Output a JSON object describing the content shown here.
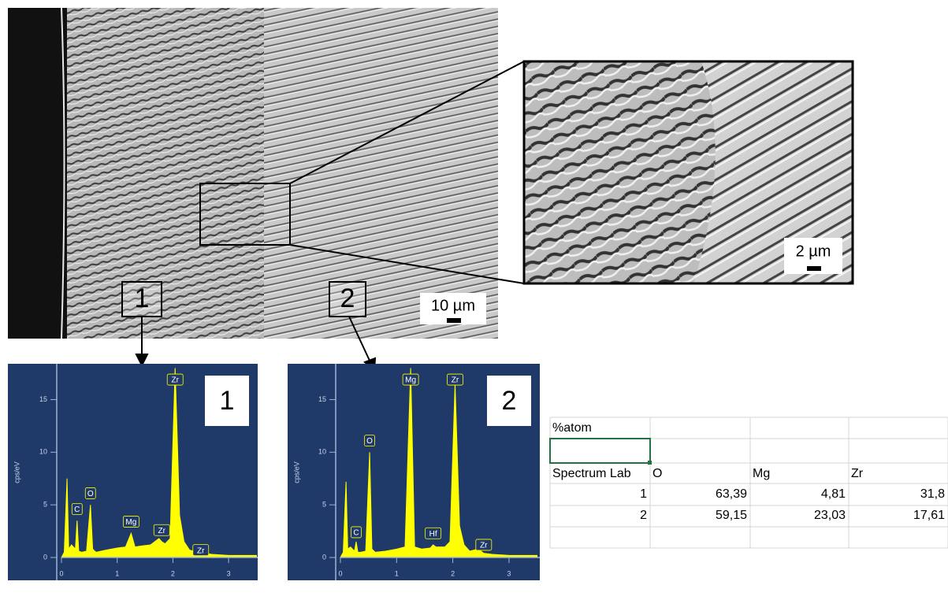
{
  "image": {
    "markers": [
      "1",
      "2"
    ],
    "scale_bar": "10 µm"
  },
  "inset": {
    "scale_bar": "2 µm"
  },
  "chart_data": [
    {
      "type": "area",
      "panel": "1",
      "y_label": "cps/eV",
      "color": "#ffff00",
      "background": "#1f3a68",
      "x": [
        0,
        0.05,
        0.1,
        0.13,
        0.18,
        0.25,
        0.28,
        0.31,
        0.36,
        0.45,
        0.52,
        0.56,
        0.62,
        0.8,
        1.0,
        1.15,
        1.25,
        1.32,
        1.45,
        1.6,
        1.75,
        1.8,
        1.86,
        1.95,
        2.04,
        2.12,
        2.2,
        2.3,
        2.45,
        2.55,
        2.7,
        3.0,
        3.5
      ],
      "values": [
        0,
        0.5,
        7.5,
        0.8,
        1.2,
        0.8,
        3.5,
        0.6,
        0.5,
        0.6,
        5,
        0.8,
        0.5,
        0.7,
        0.9,
        1.0,
        2.3,
        1.0,
        1.1,
        1.2,
        1.8,
        1.5,
        1.3,
        1.8,
        18,
        4,
        1.5,
        0.7,
        0.5,
        0.4,
        0.3,
        0.2,
        0.2
      ],
      "peaks": [
        {
          "label": "C",
          "x": 0.28,
          "y": 4.6
        },
        {
          "label": "O",
          "x": 0.52,
          "y": 6.1
        },
        {
          "label": "Mg",
          "x": 1.25,
          "y": 3.4
        },
        {
          "label": "Zr",
          "x": 1.8,
          "y": 2.6
        },
        {
          "label": "Zr",
          "x": 2.04,
          "y": 16.9
        },
        {
          "label": "Zr",
          "x": 2.5,
          "y": 0.7
        }
      ],
      "xlim": [
        0,
        3.52
      ],
      "ylim": [
        0,
        18.4
      ],
      "xticks": [
        0,
        1,
        2,
        3
      ],
      "yticks": [
        0,
        5,
        10,
        15
      ]
    },
    {
      "type": "area",
      "panel": "2",
      "y_label": "cps/eV",
      "color": "#ffff00",
      "background": "#1f3a68",
      "x": [
        0,
        0.05,
        0.1,
        0.13,
        0.18,
        0.25,
        0.28,
        0.31,
        0.36,
        0.45,
        0.52,
        0.56,
        0.62,
        0.8,
        1.0,
        1.15,
        1.25,
        1.32,
        1.45,
        1.6,
        1.65,
        1.7,
        1.86,
        1.95,
        2.04,
        2.12,
        2.2,
        2.3,
        2.45,
        2.55,
        2.7,
        3.0,
        3.5
      ],
      "values": [
        0,
        0.5,
        7.2,
        0.8,
        1.0,
        0.6,
        1.5,
        0.5,
        0.5,
        0.6,
        10,
        0.8,
        0.5,
        0.6,
        0.8,
        1.0,
        18,
        1.0,
        0.8,
        0.9,
        1.2,
        1.0,
        1.0,
        1.5,
        16.5,
        3,
        1.2,
        0.6,
        0.8,
        0.4,
        0.3,
        0.2,
        0.2
      ],
      "peaks": [
        {
          "label": "C",
          "x": 0.28,
          "y": 2.4
        },
        {
          "label": "O",
          "x": 0.52,
          "y": 11.1
        },
        {
          "label": "Mg",
          "x": 1.25,
          "y": 16.9
        },
        {
          "label": "Hf",
          "x": 1.65,
          "y": 2.3
        },
        {
          "label": "Zr",
          "x": 2.04,
          "y": 16.9
        },
        {
          "label": "Zr",
          "x": 2.55,
          "y": 1.2
        }
      ],
      "xlim": [
        0,
        3.52
      ],
      "ylim": [
        0,
        18.4
      ],
      "xticks": [
        0,
        1,
        2,
        3
      ],
      "yticks": [
        0,
        5,
        10,
        15
      ]
    }
  ],
  "table": {
    "title": "%atom",
    "header": [
      "Spectrum Lab",
      "O",
      "Mg",
      "Zr"
    ],
    "rows": [
      [
        "1",
        "63,39",
        "4,81",
        "31,8"
      ],
      [
        "2",
        "59,15",
        "23,03",
        "17,61"
      ]
    ]
  }
}
